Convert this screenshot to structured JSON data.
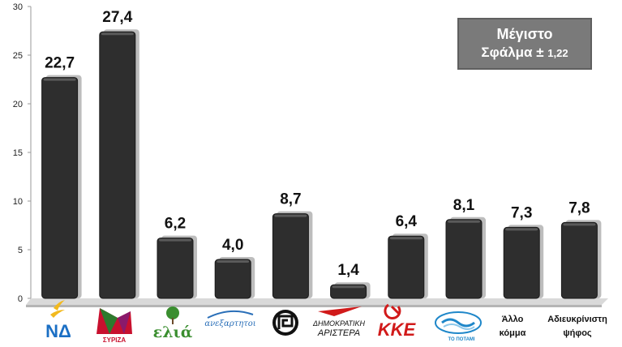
{
  "margin_of_error": {
    "line1": "Μέγιστο",
    "line2_prefix": "Σφάλμα ±",
    "line2_value": "1,22"
  },
  "chart_data": {
    "type": "bar",
    "categories": [
      "ΝΔ",
      "ΣΥΡΙΖΑ",
      "ελιά",
      "ανεξαρτητοι",
      "Χρυσή Αυγή",
      "ΔΗΜΟΚΡΑΤΙΚΗ ΑΡΙΣΤΕΡΑ",
      "ΚΚΕ",
      "ΤΟ ΠΟΤΑΜΙ",
      "Άλλο κόμμα",
      "Αδιευκρίνιστη ψήφος"
    ],
    "values": [
      22.7,
      27.4,
      6.2,
      4.0,
      8.7,
      1.4,
      6.4,
      8.1,
      7.3,
      7.8
    ],
    "value_labels": [
      "22,7",
      "27,4",
      "6,2",
      "4,0",
      "8,7",
      "1,4",
      "6,4",
      "8,1",
      "7,3",
      "7,8"
    ],
    "ylim": [
      0,
      30
    ],
    "yticks": [
      0,
      5,
      10,
      15,
      20,
      25,
      30
    ],
    "grid": false,
    "bar_color": "#2e2e2e",
    "shadow_color": "#bdbdbd"
  },
  "x_labels": {
    "other_party": [
      "Άλλο",
      "κόμμα"
    ],
    "undecided": [
      "Αδιευκρίνιστη",
      "ψήφος"
    ]
  },
  "logos": {
    "nd": {
      "text": "ΝΔ",
      "color": "#1b6fc4"
    },
    "syriza": {
      "text": "ΣΥΡΙΖΑ",
      "color": "#c8102e"
    },
    "elia": {
      "text": "ελιά",
      "color": "#3a8e2f"
    },
    "anel": {
      "text": "ανεξαρτητοι",
      "color": "#2a6fb8"
    },
    "golden_dawn": {
      "color": "#111111"
    },
    "dimar_line1": "ΔΗΜΟΚΡΑΤΙΚΗ",
    "dimar_line2": "ΑΡΙΣΤΕΡΑ",
    "dimar_color": "#d11a1a",
    "kke": {
      "text": "ΚΚΕ",
      "color": "#d11a1a"
    },
    "potami": {
      "text": "ΤΟ ΠΟΤΑΜΙ",
      "color": "#1f87c9"
    }
  }
}
